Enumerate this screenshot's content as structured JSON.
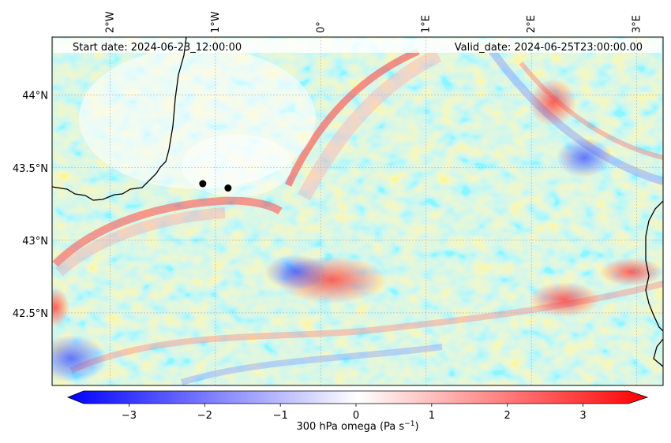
{
  "header": {
    "start_date": "Start date: 2024-06-23_12:00:00",
    "valid_date": "Valid_date: 2024-06-25T23:00:00.00"
  },
  "map": {
    "lon_ticks": [
      "2°W",
      "1°W",
      "0°",
      "1°E",
      "2°E",
      "3°E"
    ],
    "lat_ticks": [
      "44°N",
      "43.5°N",
      "43°N",
      "42.5°N"
    ],
    "lon_values": [
      -2,
      -1,
      0,
      1,
      2,
      3
    ],
    "lat_values": [
      44,
      43.5,
      43,
      42.5
    ],
    "lon_range": [
      -2.55,
      3.25
    ],
    "lat_range": [
      42.0,
      44.4
    ],
    "markers": [
      {
        "lon": -1.12,
        "lat": 43.39
      },
      {
        "lon": -0.88,
        "lat": 43.36
      }
    ]
  },
  "colorbar": {
    "label": "300 hPa omega (Pa s",
    "label_sup": "−1",
    "label_tail": ")",
    "ticks": [
      "−3",
      "−2",
      "−1",
      "0",
      "1",
      "2",
      "3"
    ],
    "tick_values": [
      -3,
      -2,
      -1,
      0,
      1,
      2,
      3
    ],
    "range": [
      -3.6,
      3.6
    ],
    "colors": {
      "low": "#0000ff",
      "mid": "#ffffff",
      "high": "#ff0000"
    }
  }
}
